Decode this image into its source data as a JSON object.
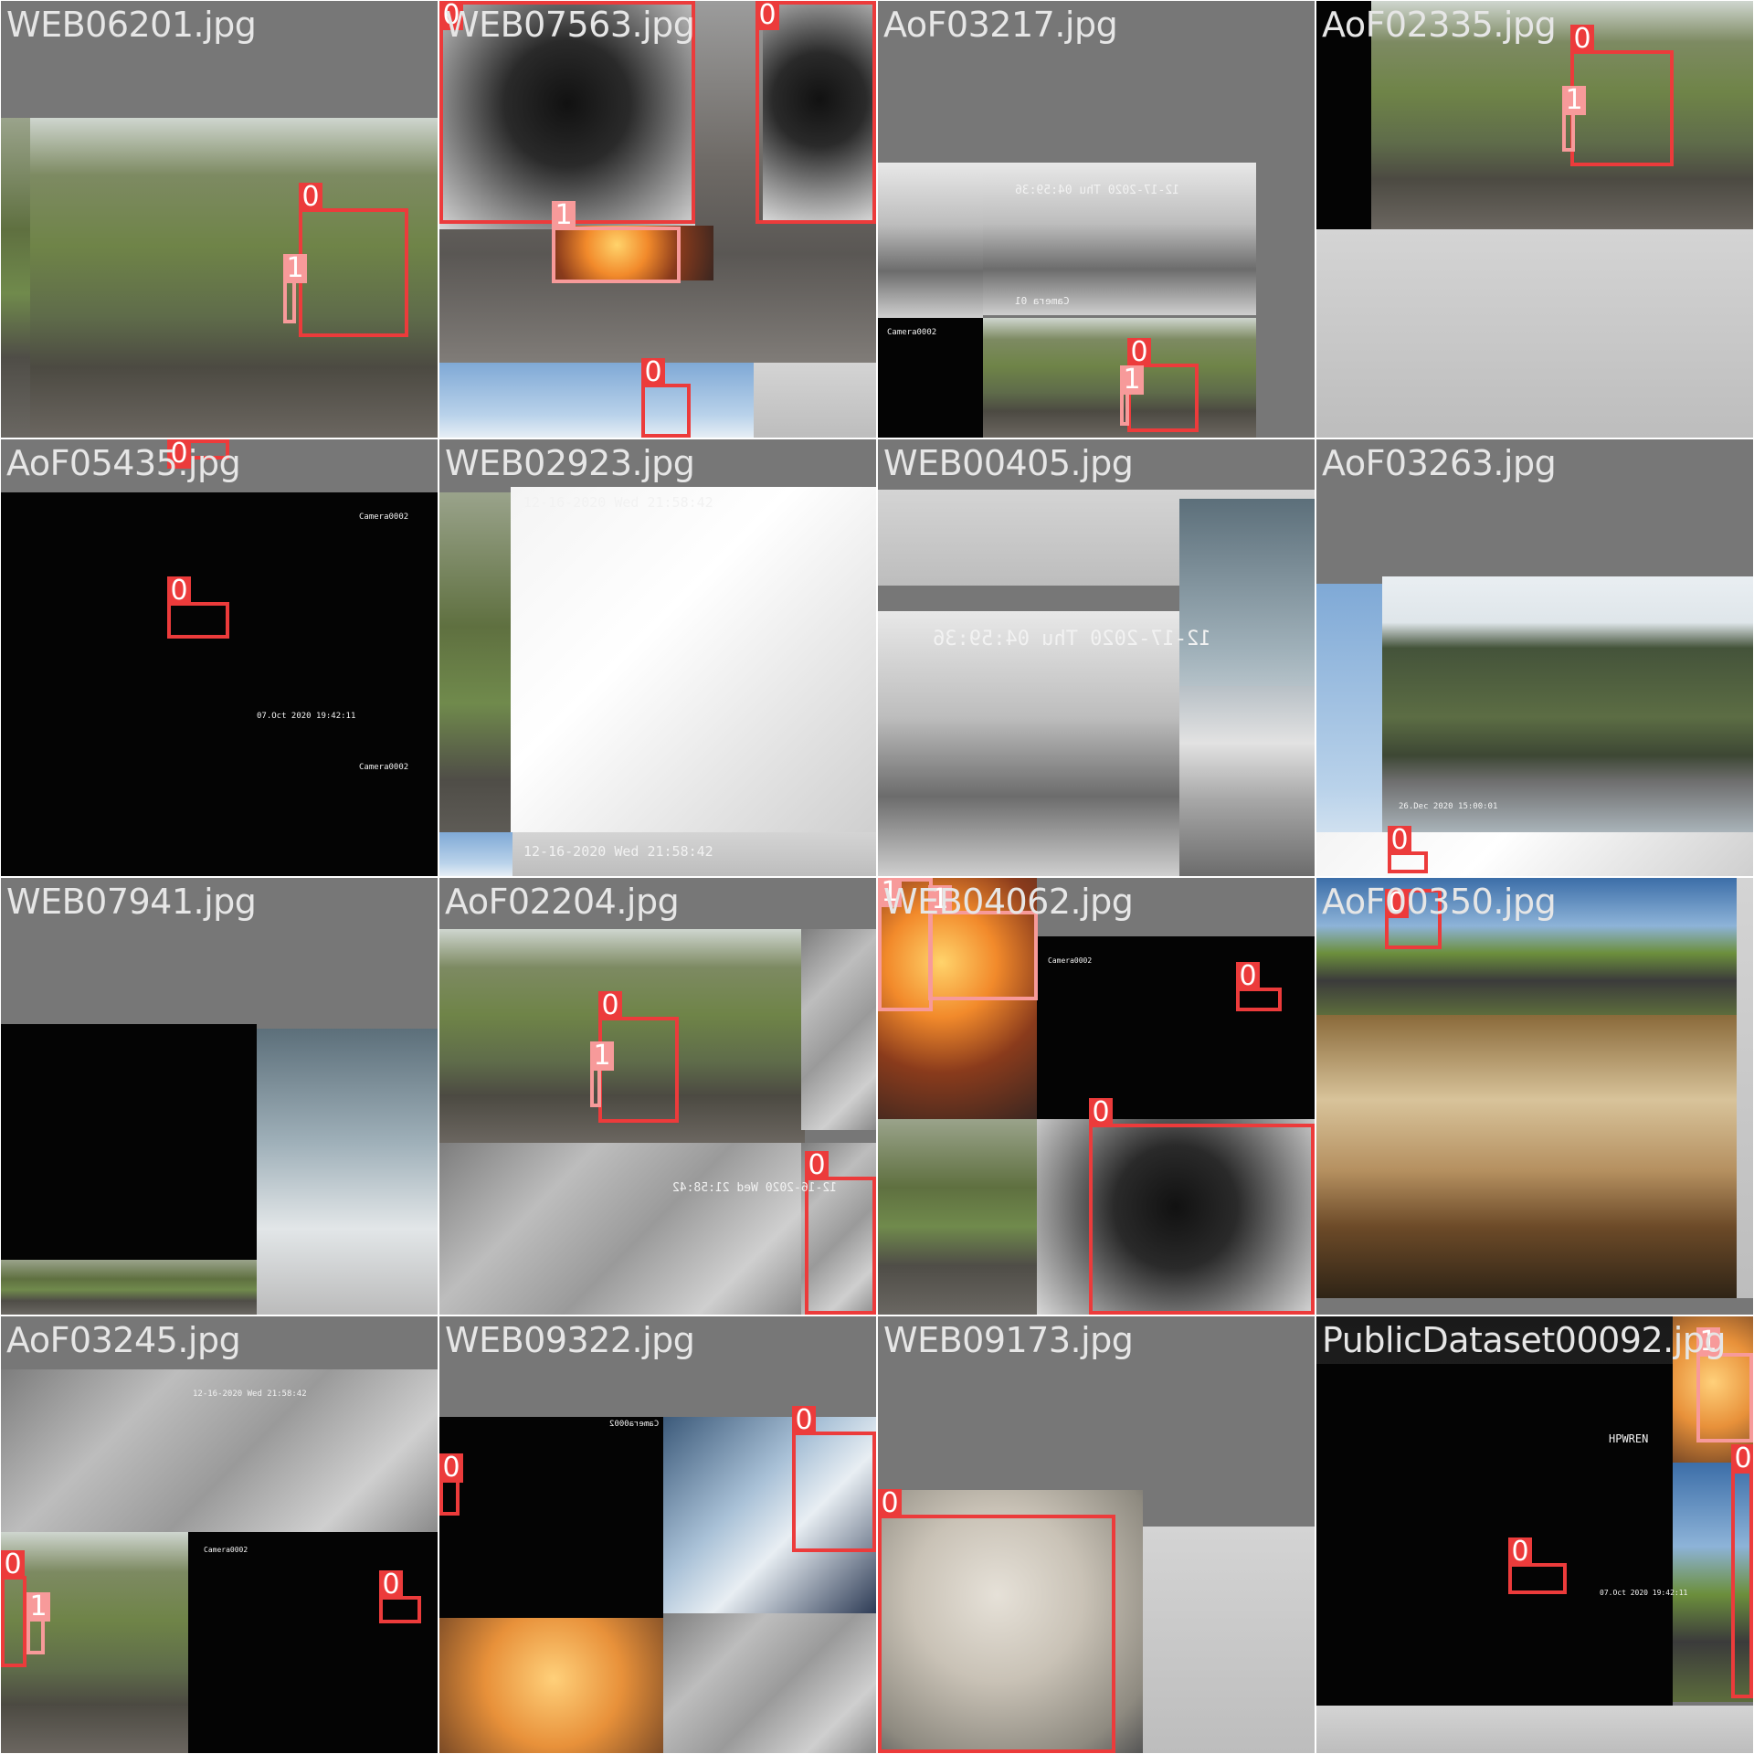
{
  "tiles": [
    "WEB06201.jpg",
    "WEB07563.jpg",
    "AoF03217.jpg",
    "AoF02335.jpg",
    "AoF05435.jpg",
    "WEB02923.jpg",
    "WEB00405.jpg",
    "AoF03263.jpg",
    "WEB07941.jpg",
    "AoF02204.jpg",
    "WEB04062.jpg",
    "AoF00350.jpg",
    "AoF03245.jpg",
    "WEB09322.jpg",
    "WEB09173.jpg",
    "PublicDataset00092.jpg"
  ],
  "class_labels": [
    "0",
    "1"
  ],
  "overlay_text": {
    "camera": "Camera0002",
    "camera01": "Camera 01",
    "stamp_oct": "07.Oct 2020  19:42:11",
    "stamp_dec16": "12-16-2020 Wed 21:58:42",
    "stamp_dec17": "12-17-2020 Thu 04:59:36",
    "stamp_dec26": "26.Dec 2020  15:00:01",
    "hpwren": "HPWREN"
  },
  "colors": {
    "class_0": "#ec3b3b",
    "class_1": "#f79a9a",
    "letterbox": "#777777",
    "label_text": "#e6e6e6"
  }
}
